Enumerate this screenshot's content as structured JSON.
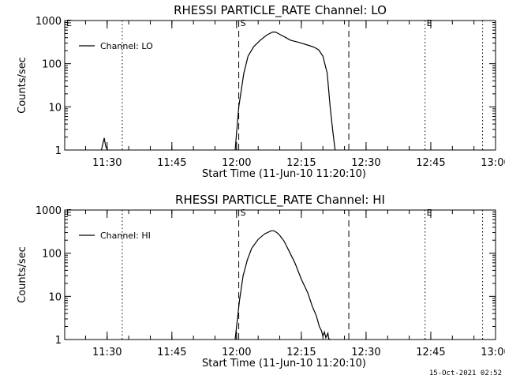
{
  "timestamp": "15-Oct-2021 02:52",
  "chart_data": [
    {
      "type": "line",
      "title": "RHESSI PARTICLE_RATE Channel: LO",
      "xlabel": "Start Time (11-Jun-10 11:20:10)",
      "ylabel": "Counts/sec",
      "y_scale": "log",
      "ylim": [
        1,
        1000
      ],
      "xlim": [
        "11:20:10",
        "13:00:00"
      ],
      "x_ticks": [
        "11:30",
        "11:45",
        "12:00",
        "12:15",
        "12:30",
        "12:45",
        "13:00"
      ],
      "y_ticks": [
        "1",
        "10",
        "100",
        "1000"
      ],
      "legend": {
        "label": "Channel: LO",
        "placement": "top-left"
      },
      "markers": [
        {
          "time": "11:20:10",
          "style": "dotted",
          "label": "E"
        },
        {
          "time": "11:33:30",
          "style": "dotted",
          "label": ""
        },
        {
          "time": "12:00:30",
          "style": "dashed",
          "label": "S"
        },
        {
          "time": "12:26:00",
          "style": "dashed",
          "label": ""
        },
        {
          "time": "12:43:40",
          "style": "dotted",
          "label": "E"
        },
        {
          "time": "12:57:00",
          "style": "dotted",
          "label": ""
        }
      ],
      "series": [
        {
          "name": "Channel: LO",
          "segments": [
            {
              "x": [
                "11:28:40",
                "11:29:20",
                "11:29:40",
                "11:30:10"
              ],
              "y": [
                1,
                1.9,
                1.2,
                1
              ]
            },
            {
              "x": [
                "11:59:40",
                "12:00:30",
                "12:01:40",
                "12:02:40",
                "12:04:00",
                "12:05:30",
                "12:07:00",
                "12:08:20",
                "12:09:00",
                "12:09:40",
                "12:10:30",
                "12:11:30",
                "12:12:30",
                "12:14:00",
                "12:15:30",
                "12:17:00",
                "12:18:00",
                "12:19:00",
                "12:20:00",
                "12:21:00",
                "12:21:40",
                "12:22:20",
                "12:22:50"
              ],
              "y": [
                1,
                10,
                60,
                150,
                250,
                350,
                460,
                540,
                540,
                500,
                450,
                400,
                350,
                320,
                290,
                260,
                240,
                210,
                150,
                60,
                10,
                2.5,
                1
              ]
            }
          ]
        }
      ]
    },
    {
      "type": "line",
      "title": "RHESSI PARTICLE_RATE Channel: HI",
      "xlabel": "Start Time (11-Jun-10 11:20:10)",
      "ylabel": "Counts/sec",
      "y_scale": "log",
      "ylim": [
        1,
        1000
      ],
      "xlim": [
        "11:20:10",
        "13:00:00"
      ],
      "x_ticks": [
        "11:30",
        "11:45",
        "12:00",
        "12:15",
        "12:30",
        "12:45",
        "13:00"
      ],
      "y_ticks": [
        "1",
        "10",
        "100",
        "1000"
      ],
      "legend": {
        "label": "Channel: HI",
        "placement": "top-left"
      },
      "markers": [
        {
          "time": "11:20:10",
          "style": "dotted",
          "label": "E"
        },
        {
          "time": "11:33:30",
          "style": "dotted",
          "label": ""
        },
        {
          "time": "12:00:30",
          "style": "dashed",
          "label": "S"
        },
        {
          "time": "12:26:00",
          "style": "dashed",
          "label": ""
        },
        {
          "time": "12:43:40",
          "style": "dotted",
          "label": "E"
        },
        {
          "time": "12:57:00",
          "style": "dotted",
          "label": ""
        }
      ],
      "series": [
        {
          "name": "Channel: HI",
          "segments": [
            {
              "x": [
                "11:59:40",
                "12:00:40",
                "12:01:30",
                "12:02:30",
                "12:03:30",
                "12:05:00",
                "12:06:30",
                "12:08:00",
                "12:08:40",
                "12:09:20",
                "12:10:00",
                "12:11:00",
                "12:12:00",
                "12:13:30",
                "12:15:00",
                "12:16:30",
                "12:17:30",
                "12:18:30",
                "12:19:10",
                "12:19:40",
                "12:20:00",
                "12:20:20",
                "12:20:40",
                "12:21:10",
                "12:21:20",
                "12:21:40"
              ],
              "y": [
                1,
                8,
                30,
                70,
                130,
                210,
                280,
                330,
                330,
                300,
                260,
                190,
                120,
                60,
                25,
                12,
                6,
                3.5,
                2,
                1.6,
                1.2,
                1.5,
                1.1,
                1.4,
                1.05,
                1
              ]
            }
          ]
        }
      ]
    }
  ]
}
